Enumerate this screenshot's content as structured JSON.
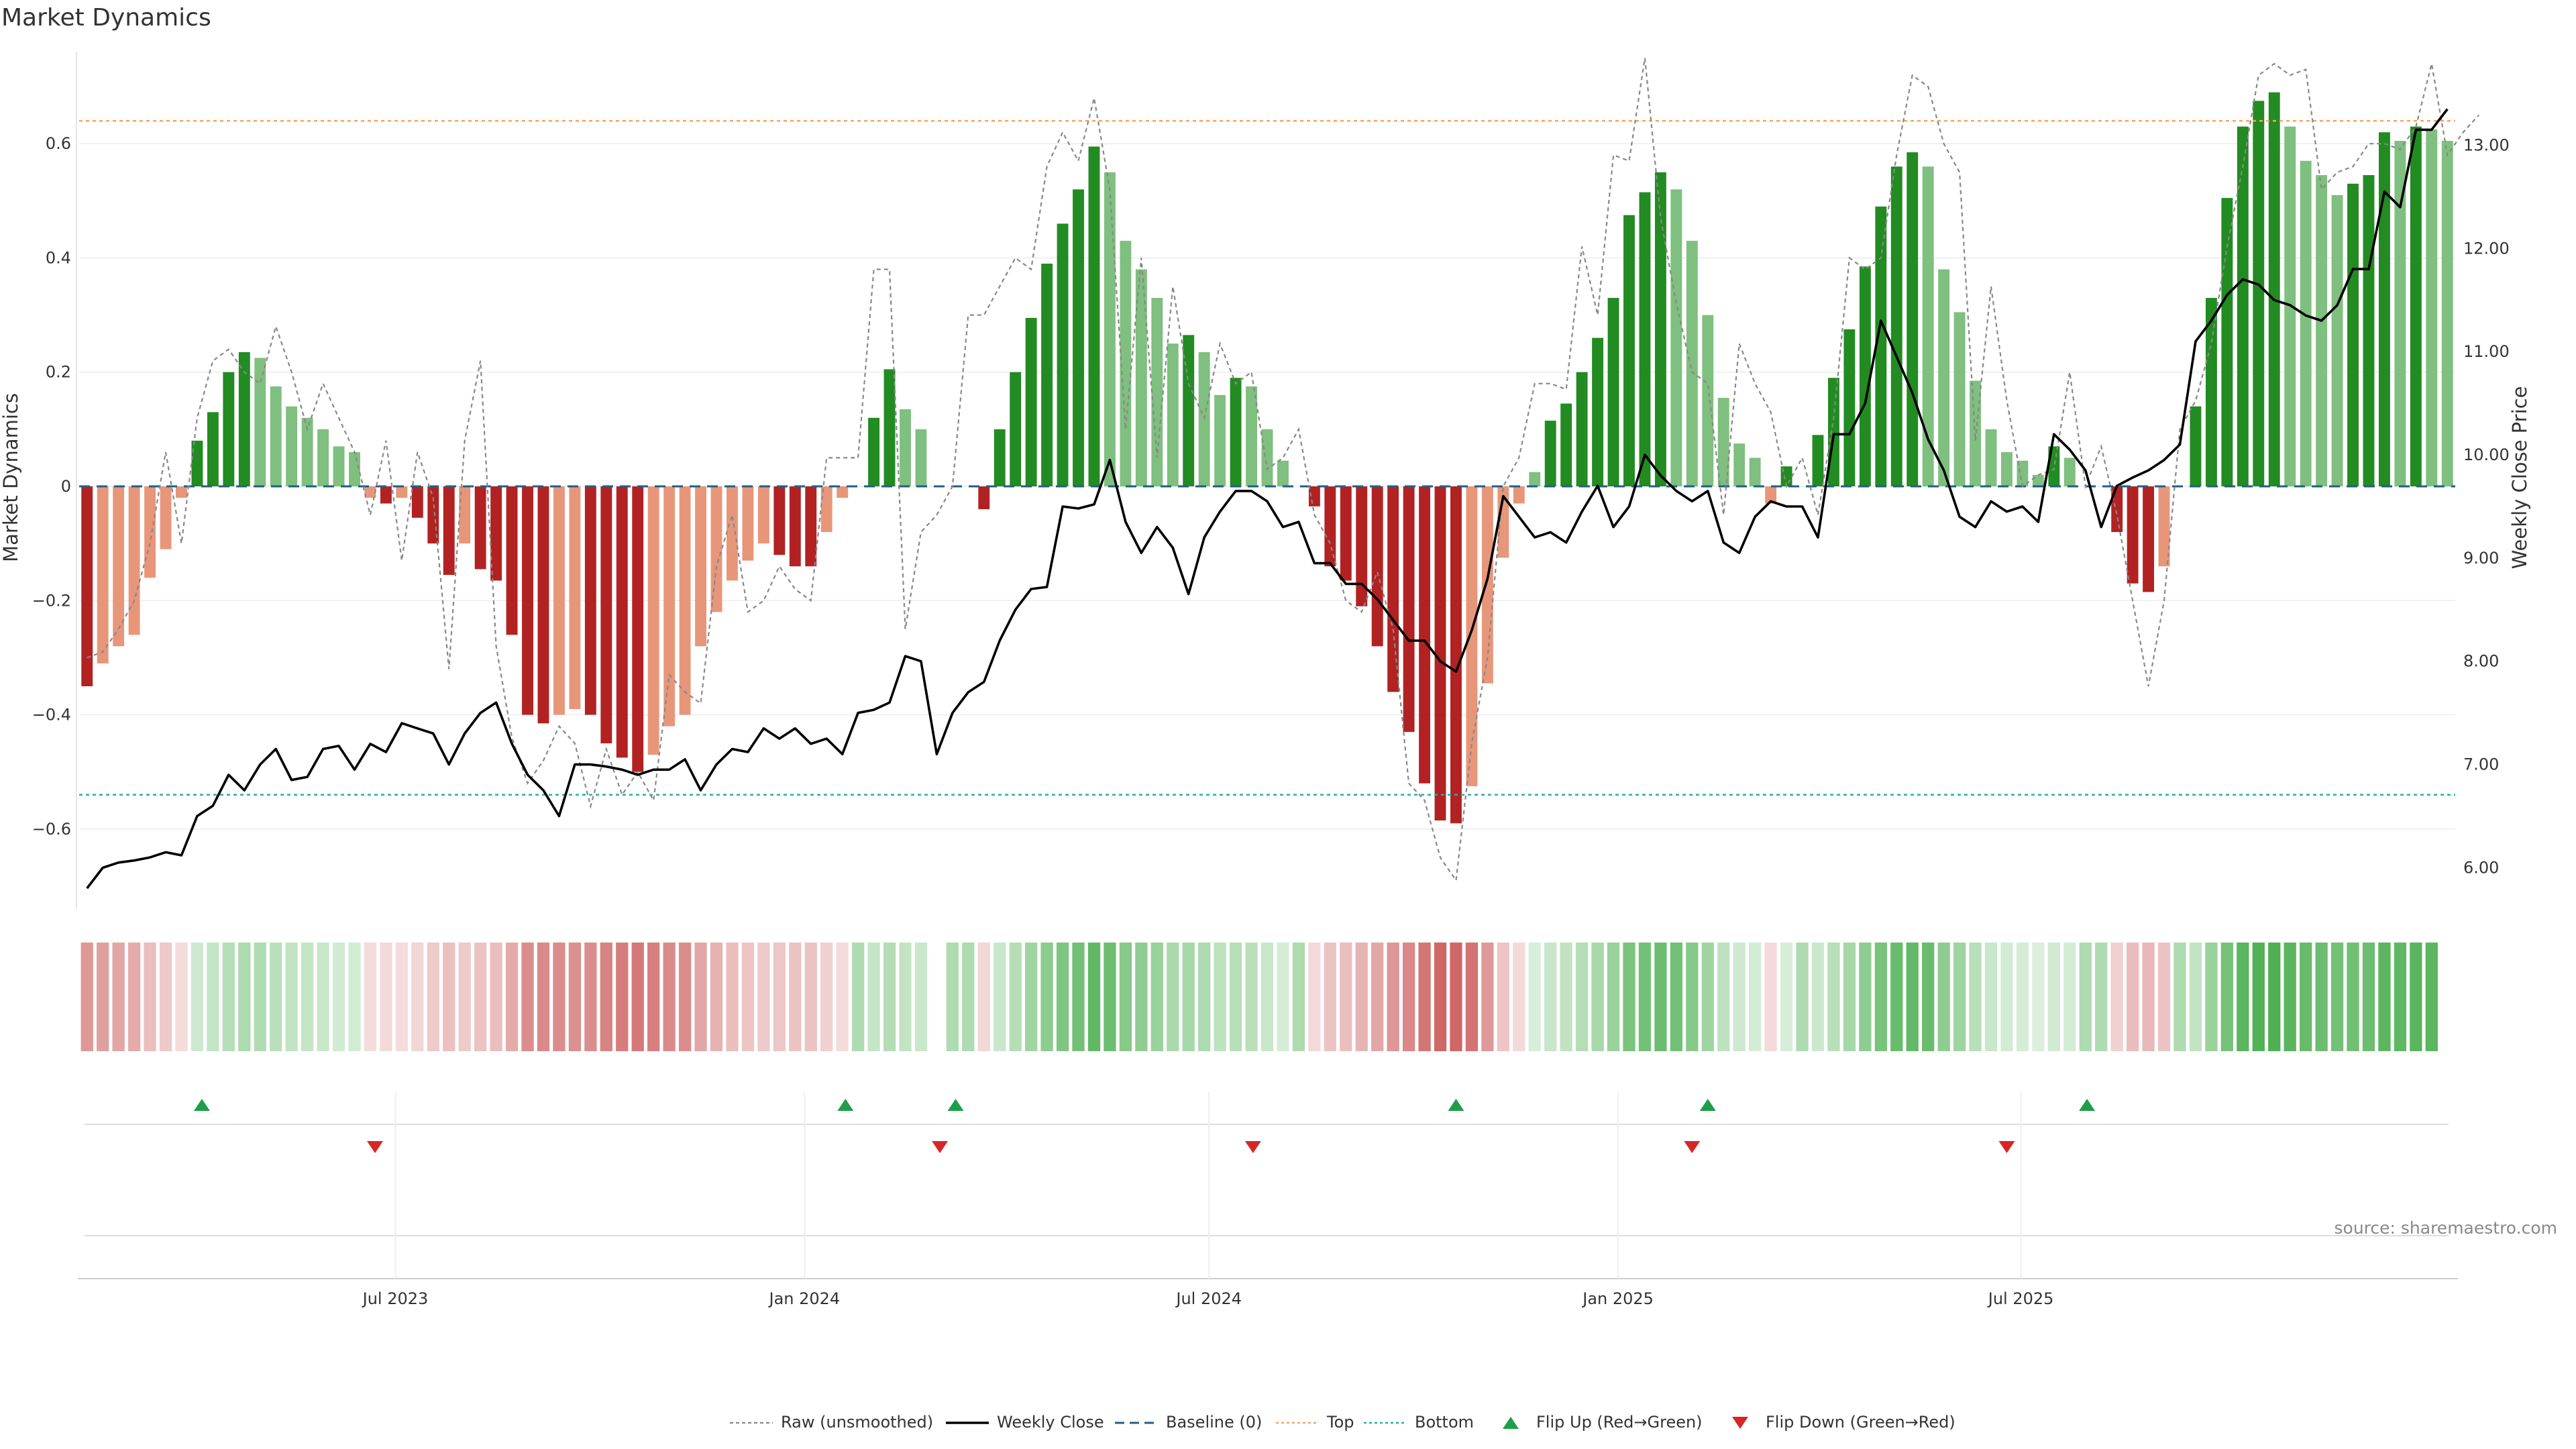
{
  "chart_data": {
    "type": "bar",
    "title": "Market Dynamics",
    "ylabel": "Market Dynamics",
    "y2label": "Weekly Close Price",
    "ylim": [
      -0.74,
      0.76
    ],
    "y2lim": [
      5.6,
      13.9
    ],
    "yticks": [
      0.6,
      0.4,
      0.2,
      0,
      -0.2,
      -0.4,
      -0.6
    ],
    "yticklabels": [
      "0.6",
      "0.4",
      "0.2",
      "0",
      "−0.2",
      "−0.4",
      "−0.6"
    ],
    "y2ticks": [
      13,
      12,
      11,
      10,
      9,
      8,
      7,
      6
    ],
    "y2ticklabels": [
      "13.00",
      "12.00",
      "11.00",
      "10.00",
      "9.00",
      "8.00",
      "7.00",
      "6.00"
    ],
    "x_tick_weeks": [
      19.6,
      45.6,
      71.3,
      97.3,
      122.9
    ],
    "x_tick_labels": [
      "Jul 2023",
      "Jan 2024",
      "Jul 2024",
      "Jan 2025",
      "Jul 2025"
    ],
    "top": 0.64,
    "bottom": -0.54,
    "baseline": 0,
    "values": [
      -0.35,
      -0.31,
      -0.28,
      -0.26,
      -0.16,
      -0.11,
      -0.02,
      0.08,
      0.13,
      0.2,
      0.235,
      0.225,
      0.175,
      0.14,
      0.12,
      0.1,
      0.07,
      0.06,
      -0.02,
      -0.03,
      -0.02,
      -0.055,
      -0.1,
      -0.155,
      -0.1,
      -0.145,
      -0.165,
      -0.26,
      -0.4,
      -0.415,
      -0.4,
      -0.39,
      -0.4,
      -0.45,
      -0.475,
      -0.5,
      -0.47,
      -0.42,
      -0.4,
      -0.28,
      -0.22,
      -0.165,
      -0.13,
      -0.1,
      -0.12,
      -0.14,
      -0.14,
      -0.08,
      -0.02,
      0,
      0.12,
      0.205,
      0.135,
      0.1,
      0,
      0,
      0,
      -0.04,
      0.1,
      0.2,
      0.295,
      0.39,
      0.46,
      0.52,
      0.595,
      0.55,
      0.43,
      0.38,
      0.33,
      0.25,
      0.265,
      0.235,
      0.16,
      0.19,
      0.175,
      0.1,
      0.045,
      0,
      -0.035,
      -0.14,
      -0.165,
      -0.21,
      -0.28,
      -0.36,
      -0.43,
      -0.52,
      -0.585,
      -0.59,
      -0.525,
      -0.345,
      -0.125,
      -0.03,
      0.025,
      0.115,
      0.145,
      0.2,
      0.26,
      0.33,
      0.475,
      0.515,
      0.55,
      0.52,
      0.43,
      0.3,
      0.155,
      0.075,
      0.05,
      -0.03,
      0.035,
      0,
      0.09,
      0.19,
      0.275,
      0.385,
      0.49,
      0.56,
      0.585,
      0.56,
      0.38,
      0.305,
      0.185,
      0.1,
      0.06,
      0.045,
      0.02,
      0.07,
      0.05,
      0,
      0,
      -0.08,
      -0.17,
      -0.185,
      -0.14,
      0,
      0.14,
      0.33,
      0.505,
      0.63,
      0.675,
      0.69,
      0.63,
      0.57,
      0.545,
      0.51,
      0.53,
      0.545,
      0.62,
      0.605,
      0.63,
      0.625,
      0.605
    ],
    "close": [
      5.8,
      6.0,
      6.05,
      6.07,
      6.1,
      6.15,
      6.12,
      6.5,
      6.6,
      6.9,
      6.75,
      7.0,
      7.15,
      6.85,
      6.88,
      7.15,
      7.18,
      6.95,
      7.2,
      7.12,
      7.4,
      7.35,
      7.3,
      7.0,
      7.3,
      7.5,
      7.6,
      7.2,
      6.9,
      6.75,
      6.5,
      7.0,
      7.0,
      6.98,
      6.95,
      6.9,
      6.95,
      6.95,
      7.05,
      6.75,
      7.0,
      7.15,
      7.12,
      7.35,
      7.25,
      7.35,
      7.2,
      7.25,
      7.1,
      7.5,
      7.53,
      7.6,
      8.05,
      8.0,
      7.1,
      7.5,
      7.7,
      7.8,
      8.2,
      8.5,
      8.7,
      8.72,
      9.5,
      9.48,
      9.52,
      9.95,
      9.35,
      9.05,
      9.3,
      9.1,
      8.65,
      9.2,
      9.45,
      9.65,
      9.65,
      9.55,
      9.3,
      9.35,
      8.95,
      8.95,
      8.75,
      8.75,
      8.6,
      8.4,
      8.2,
      8.2,
      8.0,
      7.9,
      8.3,
      8.8,
      9.6,
      9.4,
      9.2,
      9.25,
      9.15,
      9.45,
      9.7,
      9.3,
      9.5,
      10.0,
      9.8,
      9.65,
      9.55,
      9.65,
      9.15,
      9.05,
      9.4,
      9.55,
      9.5,
      9.5,
      9.2,
      10.2,
      10.2,
      10.5,
      11.3,
      10.95,
      10.6,
      10.15,
      9.85,
      9.4,
      9.3,
      9.55,
      9.45,
      9.5,
      9.35,
      10.2,
      10.05,
      9.85,
      9.3,
      9.7,
      9.78,
      9.85,
      9.95,
      10.1,
      11.1,
      11.3,
      11.55,
      11.7,
      11.65,
      11.5,
      11.45,
      11.35,
      11.3,
      11.45,
      11.8,
      11.8,
      12.55,
      12.4,
      13.15,
      13.15,
      13.35
    ],
    "raw": [
      -0.3,
      -0.29,
      -0.25,
      -0.2,
      -0.1,
      0.06,
      -0.1,
      0.12,
      0.22,
      0.24,
      0.2,
      0.18,
      0.28,
      0.2,
      0.1,
      0.18,
      0.12,
      0.06,
      -0.05,
      0.08,
      -0.13,
      0.06,
      -0.02,
      -0.32,
      0.08,
      0.22,
      -0.28,
      -0.44,
      -0.52,
      -0.48,
      -0.42,
      -0.45,
      -0.56,
      -0.46,
      -0.54,
      -0.5,
      -0.55,
      -0.33,
      -0.36,
      -0.38,
      -0.14,
      -0.05,
      -0.22,
      -0.2,
      -0.14,
      -0.18,
      -0.2,
      0.05,
      0.05,
      0.05,
      0.38,
      0.38,
      -0.25,
      -0.08,
      -0.05,
      0.0,
      0.3,
      0.3,
      0.35,
      0.4,
      0.38,
      0.56,
      0.62,
      0.57,
      0.68,
      0.52,
      0.1,
      0.4,
      0.05,
      0.35,
      0.18,
      0.12,
      0.25,
      0.18,
      0.2,
      0.03,
      0.05,
      0.1,
      -0.05,
      -0.1,
      -0.2,
      -0.22,
      -0.15,
      -0.25,
      -0.52,
      -0.55,
      -0.65,
      -0.69,
      -0.45,
      -0.3,
      0.0,
      0.05,
      0.18,
      0.18,
      0.17,
      0.42,
      0.3,
      0.58,
      0.57,
      0.75,
      0.47,
      0.32,
      0.2,
      0.18,
      -0.05,
      0.25,
      0.18,
      0.13,
      0.0,
      0.05,
      -0.05,
      0.12,
      0.4,
      0.38,
      0.4,
      0.58,
      0.72,
      0.7,
      0.6,
      0.55,
      0.08,
      0.35,
      0.15,
      0.0,
      0.02,
      0.03,
      0.2,
      0.0,
      0.07,
      -0.05,
      -0.2,
      -0.35,
      -0.2,
      0.1,
      0.15,
      0.25,
      0.42,
      0.56,
      0.72,
      0.74,
      0.72,
      0.73,
      0.52,
      0.55,
      0.56,
      0.6,
      0.6,
      0.59,
      0.63,
      0.74,
      0.58,
      0.62,
      0.65
    ],
    "signal_strip_weeks": [
      0,
      1,
      2,
      3,
      4,
      5,
      6,
      7,
      8,
      9,
      10,
      11,
      12,
      13,
      14,
      15,
      16,
      17,
      18,
      19,
      20,
      21,
      22,
      23,
      24,
      25,
      26,
      27,
      28,
      29,
      30,
      31,
      32,
      33,
      34,
      35,
      36,
      37,
      38,
      39,
      40,
      41,
      42,
      43,
      44,
      45,
      46,
      47,
      48,
      49,
      50,
      51,
      52,
      53,
      55,
      56,
      57,
      58,
      59,
      60,
      61,
      62,
      63,
      64,
      65,
      66,
      67,
      68,
      69,
      70,
      71,
      72,
      73,
      74,
      75,
      76,
      77,
      78,
      79,
      80,
      81,
      82,
      83,
      84,
      85,
      86,
      87,
      88,
      89,
      90,
      91,
      92,
      93,
      94,
      95,
      96,
      97,
      98,
      99,
      100,
      101,
      102,
      103,
      104,
      105,
      106,
      107,
      108,
      109,
      110,
      111,
      112,
      113,
      114,
      115,
      116,
      117,
      118,
      119,
      120,
      121,
      122,
      123,
      124,
      125,
      126,
      127,
      128,
      129,
      130,
      131,
      132,
      133,
      134,
      135,
      136,
      137,
      138,
      139,
      140,
      141,
      142,
      143,
      144,
      145,
      146,
      147,
      148,
      149
    ],
    "flip_up_weeks": [
      7.3,
      48.2,
      55.2,
      87.0,
      103.0,
      127.1
    ],
    "flip_down_weeks": [
      18.3,
      54.2,
      74.1,
      102.0,
      122.0
    ],
    "legend": [
      "Raw (unsmoothed)",
      "Weekly Close",
      "Baseline (0)",
      "Top",
      "Bottom",
      "Flip Up (Red→Green)",
      "Flip Down (Green→Red)"
    ],
    "source": "source: sharemaestro.com",
    "colors": {
      "pos_strong": "#228B22",
      "pos_soft": "#7FBF7F",
      "neg_strong": "#B22222",
      "neg_soft": "#E8967A",
      "close": "#000000",
      "raw": "#888888",
      "baseline": "#1F5F8B",
      "top": "#F4A460",
      "bottom": "#20B2AA",
      "flip_up": "#1E9E4A",
      "flip_down": "#D62728",
      "strip_green": "#4CAF50",
      "strip_red": "#C85050"
    }
  }
}
